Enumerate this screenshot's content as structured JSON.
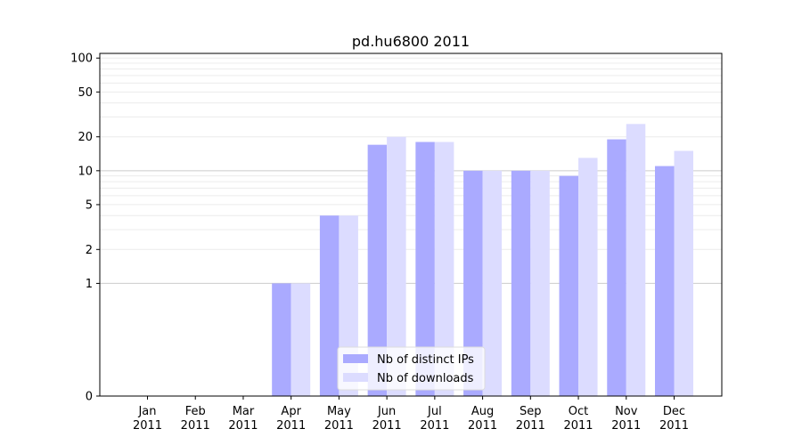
{
  "chart_data": {
    "type": "bar",
    "title": "pd.hu6800 2011",
    "xlabel": "",
    "ylabel": "",
    "yscale": "symlog",
    "ylim": [
      0,
      110
    ],
    "yticks": [
      0,
      1,
      2,
      5,
      10,
      20,
      50,
      100
    ],
    "categories": [
      [
        "Jan",
        "2011"
      ],
      [
        "Feb",
        "2011"
      ],
      [
        "Mar",
        "2011"
      ],
      [
        "Apr",
        "2011"
      ],
      [
        "May",
        "2011"
      ],
      [
        "Jun",
        "2011"
      ],
      [
        "Jul",
        "2011"
      ],
      [
        "Aug",
        "2011"
      ],
      [
        "Sep",
        "2011"
      ],
      [
        "Oct",
        "2011"
      ],
      [
        "Nov",
        "2011"
      ],
      [
        "Dec",
        "2011"
      ]
    ],
    "series": [
      {
        "name": "Nb of distinct IPs",
        "color": "#aaaaff",
        "values": [
          0,
          0,
          0,
          1,
          4,
          17,
          18,
          10,
          10,
          9,
          19,
          11
        ]
      },
      {
        "name": "Nb of downloads",
        "color": "#dcdcff",
        "values": [
          0,
          0,
          0,
          1,
          4,
          20,
          18,
          10,
          10,
          13,
          26,
          15
        ]
      }
    ],
    "legend_position": "lower-center",
    "grid": "horizontal"
  }
}
